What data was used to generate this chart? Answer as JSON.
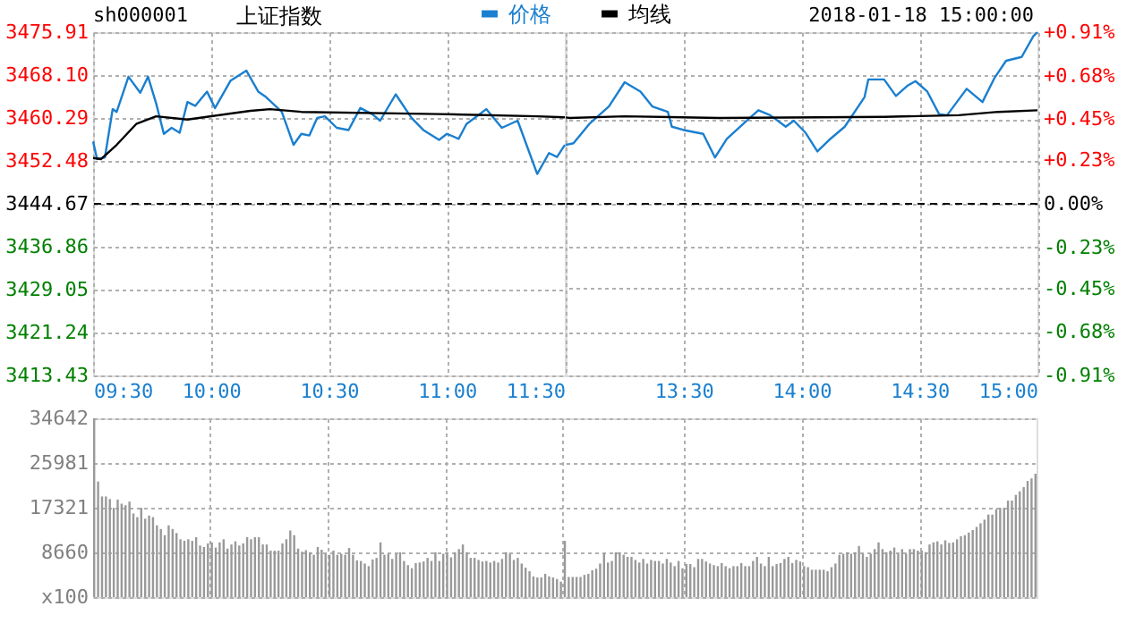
{
  "chart_data": [
    {
      "type": "line",
      "title": "上证指数",
      "subtitle": "sh000001",
      "xlim": [
        9.5,
        11.5
      ],
      "xticks": [
        {
          "value": 9.5,
          "label": "09:30"
        },
        {
          "value": 10,
          "label": "10:00"
        },
        {
          "value": 10.5,
          "label": "10:30"
        },
        {
          "value": 11,
          "label": "11:00"
        },
        {
          "value": 11.5,
          "label": "11:30"
        }
      ],
      "ylim": [
        3413.43,
        3475.91
      ],
      "yticks": [
        3413.43,
        3421.24,
        3429.05,
        3436.86,
        3444.67,
        3452.48,
        3460.29,
        {
          "value": 3468.1,
          "label": "3468.10"
        },
        3475.91
      ],
      "ref_lines": [
        {
          "axis": "y",
          "value": 3444.67,
          "color": "#000000",
          "line_style": "dashed"
        }
      ],
      "grid": true,
      "legend": "top",
      "marker": "none",
      "line_style": "solid",
      "series": [
        {
          "name": "价格",
          "color": "#1a7fcf",
          "x": [
            9.5,
            9.517,
            9.55,
            9.583,
            9.6,
            9.65,
            9.7,
            9.733,
            9.767,
            9.8,
            9.833,
            9.867,
            9.9,
            9.933,
            9.983,
            10.017,
            10.083,
            10.15,
            10.2,
            10.233,
            10.3,
            10.35,
            10.383,
            10.417,
            10.45,
            10.483,
            10.533,
            10.583,
            10.633,
            10.683,
            10.717,
            10.783,
            10.85,
            10.9,
            10.967,
            11,
            11.05,
            11.083,
            11.167,
            11.233,
            11.3,
            11.383,
            11.433,
            11.467,
            11.5
          ],
          "values": [
            3456.0,
            3452.8,
            3453.1,
            3461.9,
            3461.4,
            3467.8,
            3464.9,
            3467.8,
            3463.0,
            3457.4,
            3458.5,
            3457.6,
            3463.2,
            3462.5,
            3465.1,
            3462.1,
            3467.1,
            3468.9,
            3465.1,
            3464.1,
            3461.4,
            3455.4,
            3457.4,
            3457.1,
            3460.3,
            3460.6,
            3458.5,
            3458.1,
            3462.1,
            3461.0,
            3459.8,
            3464.6,
            3460.3,
            3458.1,
            3456.3,
            3457.4,
            3456.5,
            3459.2,
            3461.9,
            3458.5,
            3459.8,
            3450.1,
            3453.9,
            3453.2,
            3455.4
          ]
        },
        {
          "name": "均线",
          "color": "#000000",
          "x": [
            9.5,
            9.533,
            9.6,
            9.683,
            9.767,
            9.9,
            10.167,
            10.25,
            10.383,
            10.967,
            11.383,
            11.5
          ],
          "values": [
            3453.0,
            3452.8,
            3455.4,
            3459.2,
            3460.6,
            3460.0,
            3461.6,
            3461.9,
            3461.4,
            3461.0,
            3460.6,
            3460.4
          ]
        }
      ]
    },
    {
      "type": "line",
      "annotations": [
        "2018-01-18 15:00:00"
      ],
      "xlim": [
        13,
        15
      ],
      "xticks": [
        {
          "value": 13,
          "label": null
        },
        {
          "value": 13.5,
          "label": "13:30"
        },
        {
          "value": 14,
          "label": "14:00"
        },
        {
          "value": 14.5,
          "label": "14:30"
        },
        {
          "value": 15,
          "label": "15:00"
        }
      ],
      "ylim": [
        3413.43,
        3475.91
      ],
      "y2lim": [
        -0.91,
        0.91
      ],
      "y2ticks": [
        {
          "value": -0.91,
          "label": "-0.91%"
        },
        {
          "value": -0.68,
          "label": "-0.68%"
        },
        {
          "value": -0.45,
          "label": "-0.45%"
        },
        {
          "value": -0.23,
          "label": "-0.23%"
        },
        {
          "value": 0,
          "label": "0.00%"
        },
        {
          "value": 0.23,
          "label": "+0.23%"
        },
        {
          "value": 0.45,
          "label": "+0.45%"
        },
        {
          "value": 0.68,
          "label": "+0.68%"
        },
        {
          "value": 0.91,
          "label": "+0.91%"
        }
      ],
      "ref_lines": [
        {
          "axis": "y2",
          "value": 0,
          "color": "#000000",
          "line_style": "dashed"
        }
      ],
      "grid": true,
      "marker": "none",
      "line_style": "solid",
      "series": [
        {
          "color": "#1a7fcf",
          "x": [
            13,
            13.033,
            13.1,
            13.183,
            13.25,
            13.317,
            13.367,
            13.433,
            13.45,
            13.5,
            13.583,
            13.633,
            13.683,
            13.767,
            13.817,
            13.867,
            13.933,
            13.967,
            14.017,
            14.067,
            14.117,
            14.183,
            14.267,
            14.283,
            14.35,
            14.4,
            14.45,
            14.483,
            14.533,
            14.583,
            14.617,
            14.7,
            14.767,
            14.817,
            14.867,
            14.933,
            14.983,
            15
          ],
          "values": [
            3455.4,
            3455.7,
            3459.2,
            3462.4,
            3466.8,
            3465.1,
            3462.4,
            3461.4,
            3458.7,
            3458.1,
            3457.4,
            3453.1,
            3456.5,
            3459.8,
            3461.7,
            3460.8,
            3458.7,
            3459.8,
            3457.6,
            3454.2,
            3456.3,
            3458.7,
            3464.1,
            3467.3,
            3467.3,
            3464.3,
            3466.2,
            3467.0,
            3465.1,
            3461.0,
            3460.8,
            3465.6,
            3463.2,
            3467.5,
            3470.7,
            3471.4,
            3475.2,
            3475.9
          ]
        },
        {
          "color": "#000000",
          "x": [
            13,
            13.017,
            13.25,
            13.65,
            14.35,
            14.667,
            14.833,
            15
          ],
          "values": [
            3460.4,
            3460.3,
            3460.6,
            3460.3,
            3460.5,
            3460.8,
            3461.4,
            3461.7
          ]
        }
      ]
    },
    {
      "type": "bar",
      "color": "#999999",
      "categories": [
        null,
        null,
        null,
        null,
        null,
        null,
        null,
        null,
        null,
        null,
        null,
        null,
        null,
        null,
        null,
        null,
        null,
        null,
        null,
        null,
        null,
        null,
        null,
        null,
        null,
        null,
        null,
        null,
        null,
        null,
        null,
        null,
        null,
        null,
        null,
        null,
        null,
        null,
        null,
        null,
        null,
        null,
        null,
        null,
        null,
        null,
        null,
        null,
        null,
        null,
        null,
        null,
        null,
        null,
        null,
        null,
        null,
        null,
        null,
        null,
        null,
        null,
        null,
        null,
        null,
        null,
        null,
        null,
        null,
        null,
        null,
        null,
        null,
        null,
        null,
        null,
        null,
        null,
        null,
        null,
        null,
        null,
        null,
        null,
        null,
        null,
        null,
        null,
        null,
        null,
        null,
        null,
        null,
        null,
        null,
        null,
        null,
        null,
        null,
        null,
        null,
        null,
        null,
        null,
        null,
        null,
        null,
        null,
        null,
        null,
        null,
        null,
        null,
        null,
        null,
        null,
        null,
        null,
        null,
        null,
        null,
        null,
        null,
        null,
        null,
        null,
        null,
        null,
        null,
        null,
        null,
        null,
        null,
        null,
        null,
        null,
        null,
        null,
        null,
        null,
        null,
        null,
        null,
        null,
        null,
        null,
        null,
        null,
        null,
        null,
        null,
        null,
        null,
        null,
        null,
        null,
        null,
        null,
        null,
        null,
        null,
        null,
        null,
        null,
        null,
        null,
        null,
        null,
        null,
        null,
        null,
        null,
        null,
        null,
        null,
        null,
        null,
        null,
        null,
        null,
        null,
        null,
        null,
        null,
        null,
        null,
        null,
        null,
        null,
        null,
        null,
        null,
        null,
        null,
        null,
        null,
        null,
        null,
        null,
        null,
        null,
        null,
        null,
        null,
        null,
        null,
        null,
        null,
        null,
        null,
        null,
        null,
        null,
        null,
        null,
        null,
        null,
        null,
        null,
        null,
        null,
        null,
        null,
        null,
        null,
        null,
        null,
        null,
        null,
        null,
        null,
        null,
        null,
        null,
        null,
        null,
        null,
        null,
        null,
        null,
        null
      ],
      "ylim": [
        0,
        34642
      ],
      "yticks": [
        {
          "value": 0,
          "label": "x100"
        },
        8660,
        17321,
        25981,
        34642
      ],
      "tick_labels": "y",
      "grid": true,
      "values": [
        34642,
        22400,
        19500,
        19500,
        19000,
        17300,
        18900,
        18100,
        17800,
        18500,
        16200,
        15500,
        17300,
        15200,
        15800,
        15500,
        13900,
        13200,
        12000,
        13900,
        13200,
        12400,
        11200,
        10900,
        11200,
        10900,
        11600,
        10000,
        9700,
        10400,
        10600,
        9600,
        10600,
        11200,
        9400,
        10200,
        10800,
        10000,
        10400,
        11600,
        11200,
        11600,
        11600,
        10200,
        10200,
        9000,
        9000,
        9000,
        10400,
        11200,
        12900,
        12000,
        9400,
        8800,
        9100,
        8700,
        8200,
        9700,
        9200,
        8400,
        8200,
        9000,
        8200,
        8400,
        8200,
        9500,
        8200,
        7100,
        7000,
        6500,
        6000,
        7300,
        7600,
        10600,
        8200,
        8400,
        7400,
        8400,
        8700,
        7000,
        6200,
        5600,
        6600,
        6700,
        6900,
        7600,
        7000,
        8700,
        7000,
        8400,
        8700,
        7700,
        8700,
        9300,
        10200,
        8700,
        7600,
        7600,
        7200,
        6900,
        7000,
        6700,
        7000,
        6700,
        7400,
        8700,
        8400,
        7200,
        7600,
        6500,
        5700,
        5000,
        4000,
        3800,
        3800,
        4500,
        4000,
        3800,
        3500,
        3000,
        10900,
        3900,
        3900,
        3900,
        3900,
        4300,
        4500,
        5200,
        5500,
        6500,
        8500,
        6700,
        7000,
        8700,
        8700,
        8200,
        7800,
        7800,
        7200,
        6700,
        7400,
        6500,
        7200,
        7000,
        7000,
        6500,
        7400,
        6700,
        6000,
        7000,
        5600,
        6400,
        6400,
        5800,
        7400,
        7400,
        6900,
        6500,
        6200,
        6000,
        6600,
        6000,
        5600,
        6000,
        6000,
        6600,
        6000,
        6000,
        7000,
        7800,
        6500,
        6000,
        7800,
        6000,
        6400,
        6600,
        7400,
        7800,
        6600,
        7200,
        6900,
        6000,
        5800,
        5300,
        5300,
        5300,
        5300,
        5000,
        5800,
        6500,
        8200,
        8400,
        8700,
        8400,
        8700,
        9900,
        8400,
        7800,
        8400,
        9300,
        10600,
        9300,
        8700,
        9000,
        9600,
        8400,
        9300,
        8400,
        9300,
        9300,
        9000,
        9000,
        8700,
        10200,
        10600,
        10800,
        10200,
        11000,
        10500,
        10600,
        11200,
        11800,
        12000,
        12500,
        13000,
        13600,
        14300,
        15000,
        16000,
        16000,
        17000,
        17300,
        17300,
        18700,
        18700,
        19800,
        20500,
        21300,
        22500,
        23000,
        23900
      ]
    }
  ]
}
